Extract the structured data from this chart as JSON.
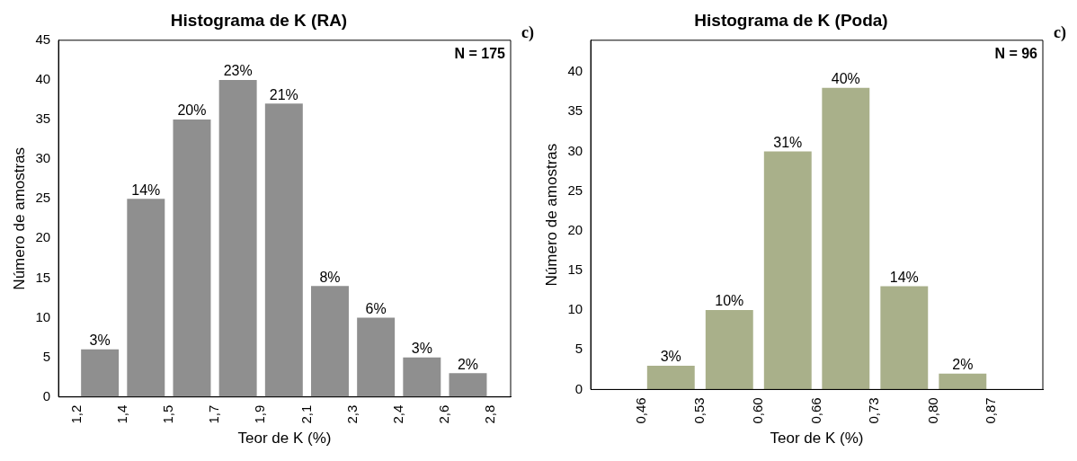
{
  "chart_data": [
    {
      "type": "histogram",
      "title": "Histograma de K (RA)",
      "xlabel": "Teor de K (%)",
      "ylabel": "Número de amostras",
      "bins": [
        1.2,
        1.375,
        1.55,
        1.725,
        1.9,
        2.075,
        2.25,
        2.425,
        2.6,
        2.775
      ],
      "values": [
        6,
        25,
        35,
        40,
        37,
        14,
        10,
        5,
        3
      ],
      "color": "#8f8f8f",
      "xlim": [
        1.13,
        2.85
      ],
      "xticks": [
        {
          "value": 1.2,
          "label": "1,2"
        },
        {
          "value": 1.375,
          "label": "1,4"
        },
        {
          "value": 1.55,
          "label": "1,5"
        },
        {
          "value": 1.725,
          "label": "1,7"
        },
        {
          "value": 1.9,
          "label": "1,9"
        },
        {
          "value": 2.075,
          "label": "2,1"
        },
        {
          "value": 2.25,
          "label": "2,3"
        },
        {
          "value": 2.425,
          "label": "2,4"
        },
        {
          "value": 2.6,
          "label": "2,6"
        },
        {
          "value": 2.775,
          "label": "2,8"
        }
      ],
      "ylim": [
        0,
        45
      ],
      "yticks": [
        0,
        5,
        10,
        15,
        20,
        25,
        30,
        35,
        40,
        45
      ],
      "annotations": [
        "N = 175",
        "c)",
        {
          "text": "3%",
          "x": 1.2875,
          "y": 6
        },
        {
          "text": "14%",
          "x": 1.4625,
          "y": 25
        },
        {
          "text": "20%",
          "x": 1.6375,
          "y": 35
        },
        {
          "text": "23%",
          "x": 1.8125,
          "y": 40
        },
        {
          "text": "21%",
          "x": 1.9875,
          "y": 37
        },
        {
          "text": "8%",
          "x": 2.1625,
          "y": 14
        },
        {
          "text": "6%",
          "x": 2.3375,
          "y": 10
        },
        {
          "text": "3%",
          "x": 2.5125,
          "y": 5
        },
        {
          "text": "2%",
          "x": 2.6875,
          "y": 3
        }
      ],
      "grid": false,
      "legend": false
    },
    {
      "type": "histogram",
      "title": "Histograma de K (Poda)",
      "xlabel": "Teor de K (%)",
      "ylabel": "Número de amostras",
      "bins": [
        0.46,
        0.528,
        0.597,
        0.665,
        0.733,
        0.802,
        0.87
      ],
      "values": [
        3,
        10,
        30,
        38,
        13,
        2
      ],
      "color": "#a9b08a",
      "xlim": [
        0.4,
        0.93
      ],
      "xticks": [
        {
          "value": 0.46,
          "label": "0,46"
        },
        {
          "value": 0.528,
          "label": "0,53"
        },
        {
          "value": 0.597,
          "label": "0,60"
        },
        {
          "value": 0.665,
          "label": "0,66"
        },
        {
          "value": 0.733,
          "label": "0,73"
        },
        {
          "value": 0.802,
          "label": "0,80"
        },
        {
          "value": 0.87,
          "label": "0,87"
        }
      ],
      "ylim": [
        0,
        44
      ],
      "yticks": [
        0,
        5,
        10,
        15,
        20,
        25,
        30,
        35,
        40
      ],
      "annotations": [
        "N = 96",
        "c)",
        {
          "text": "3%",
          "x": 0.494,
          "y": 3
        },
        {
          "text": "10%",
          "x": 0.5625,
          "y": 10
        },
        {
          "text": "31%",
          "x": 0.631,
          "y": 30
        },
        {
          "text": "40%",
          "x": 0.699,
          "y": 38
        },
        {
          "text": "14%",
          "x": 0.7675,
          "y": 13
        },
        {
          "text": "2%",
          "x": 0.836,
          "y": 2
        }
      ],
      "grid": false,
      "legend": false
    }
  ]
}
